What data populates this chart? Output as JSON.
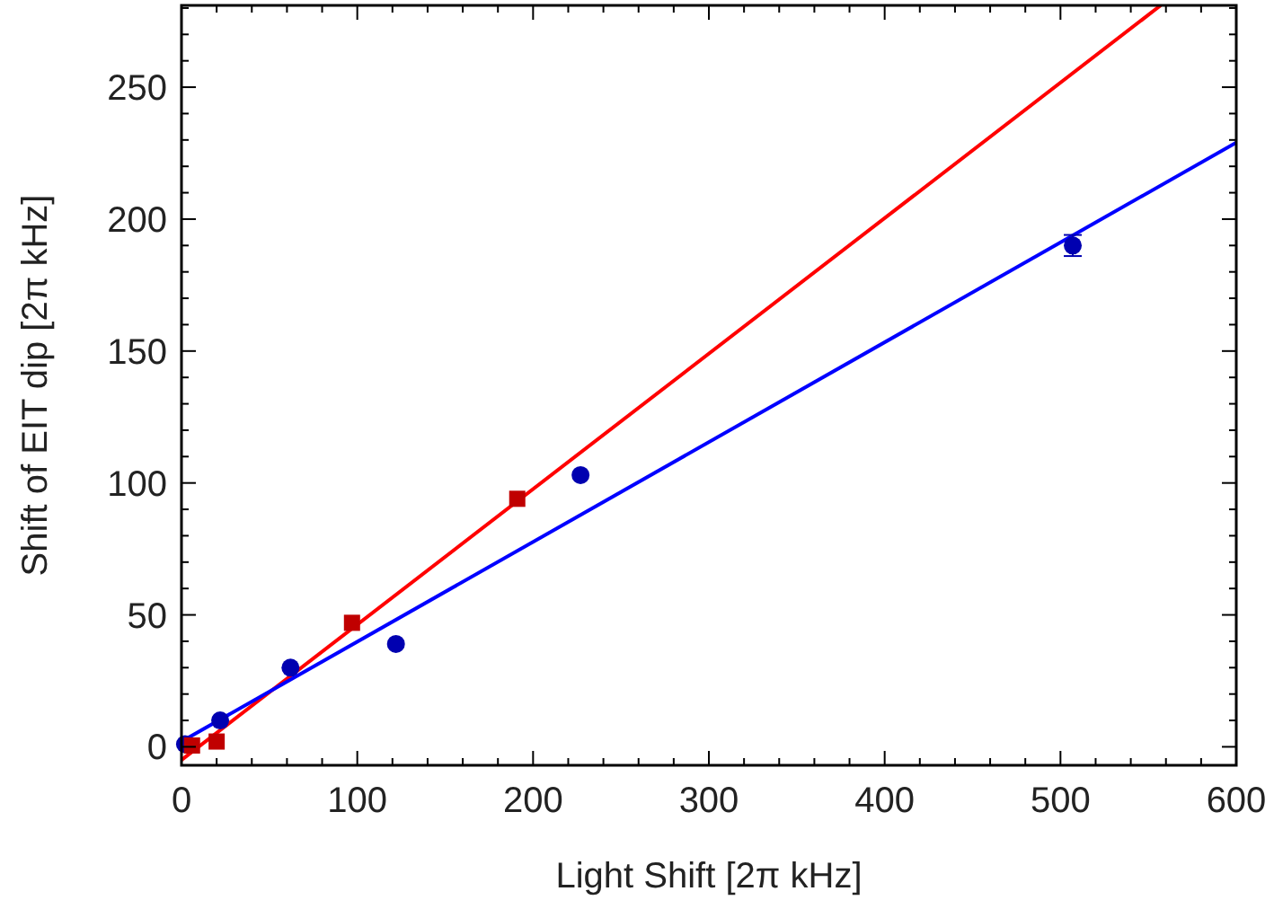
{
  "chart_data": {
    "type": "scatter",
    "xlabel": "Light Shift [2π kHz]",
    "ylabel": "Shift of EIT dip [2π kHz]",
    "xlim": [
      0,
      600
    ],
    "ylim": [
      -7,
      281
    ],
    "xticks": [
      0,
      {
        "value": 20,
        "label": null
      },
      {
        "value": 40,
        "label": null
      },
      {
        "value": 60,
        "label": null
      },
      {
        "value": 80,
        "label": null
      },
      100,
      {
        "value": 120,
        "label": null
      },
      {
        "value": 140,
        "label": null
      },
      {
        "value": 160,
        "label": null
      },
      {
        "value": 180,
        "label": null
      },
      200,
      {
        "value": 220,
        "label": null
      },
      {
        "value": 240,
        "label": null
      },
      {
        "value": 260,
        "label": null
      },
      {
        "value": 280,
        "label": null
      },
      300,
      {
        "value": 320,
        "label": null
      },
      {
        "value": 340,
        "label": null
      },
      {
        "value": 360,
        "label": null
      },
      {
        "value": 380,
        "label": null
      },
      400,
      {
        "value": 420,
        "label": null
      },
      {
        "value": 440,
        "label": null
      },
      {
        "value": 460,
        "label": null
      },
      {
        "value": 480,
        "label": null
      },
      500,
      {
        "value": 520,
        "label": null
      },
      {
        "value": 540,
        "label": null
      },
      {
        "value": 560,
        "label": null
      },
      {
        "value": 580,
        "label": null
      },
      600
    ],
    "yticks": [
      0,
      {
        "value": 10,
        "label": null
      },
      {
        "value": 20,
        "label": null
      },
      {
        "value": 30,
        "label": null
      },
      {
        "value": 40,
        "label": null
      },
      50,
      {
        "value": 60,
        "label": null
      },
      {
        "value": 70,
        "label": null
      },
      {
        "value": 80,
        "label": null
      },
      {
        "value": 90,
        "label": null
      },
      100,
      {
        "value": 110,
        "label": null
      },
      {
        "value": 120,
        "label": null
      },
      {
        "value": 130,
        "label": null
      },
      {
        "value": 140,
        "label": null
      },
      150,
      {
        "value": 160,
        "label": null
      },
      {
        "value": 170,
        "label": null
      },
      {
        "value": 180,
        "label": null
      },
      {
        "value": 190,
        "label": null
      },
      200,
      {
        "value": 210,
        "label": null
      },
      {
        "value": 220,
        "label": null
      },
      {
        "value": 230,
        "label": null
      },
      {
        "value": 240,
        "label": null
      },
      250,
      {
        "value": 260,
        "label": null
      },
      {
        "value": 270,
        "label": null
      },
      {
        "value": 280,
        "label": null
      }
    ],
    "grid": false,
    "series": [
      {
        "type": "line",
        "color": "#ff0000",
        "x": [
          0,
          557
        ],
        "values": [
          -5,
          281
        ]
      },
      {
        "type": "line",
        "color": "#0000ff",
        "x": [
          0,
          600
        ],
        "values": [
          2,
          229
        ]
      },
      {
        "color": "#0000b0",
        "marker": "circle",
        "x": [
          2,
          22,
          62,
          122,
          227,
          507
        ],
        "values": [
          1,
          10,
          30,
          39,
          103,
          190
        ],
        "errors": [
          null,
          null,
          null,
          null,
          null,
          4
        ]
      },
      {
        "color": "#c00000",
        "marker": "square",
        "x": [
          6,
          20,
          97,
          191
        ],
        "values": [
          0.5,
          2,
          47,
          94
        ]
      }
    ]
  }
}
